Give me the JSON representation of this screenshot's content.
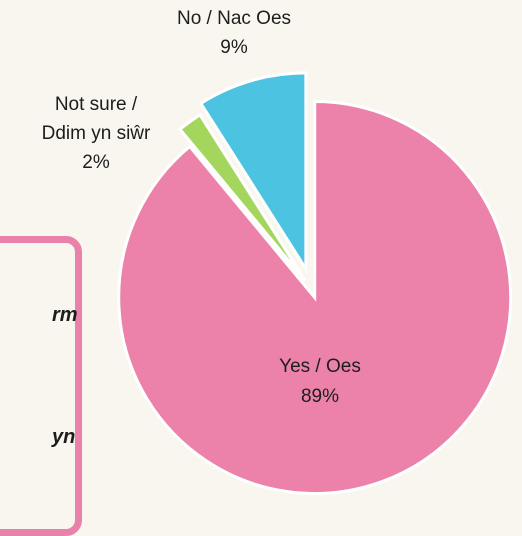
{
  "chart_data": {
    "type": "pie",
    "slices": [
      {
        "label_line1": "Yes / Oes",
        "label_line2": "",
        "value_label": "89%",
        "value": 89,
        "color": "#ec82aa"
      },
      {
        "label_line1": "Not sure /",
        "label_line2": "Ddim yn siŵr",
        "value_label": "2%",
        "value": 2,
        "color": "#a4d65e"
      },
      {
        "label_line1": "No / Nac Oes",
        "label_line2": "",
        "value_label": "9%",
        "value": 9,
        "color": "#4cc3e0"
      }
    ]
  },
  "legend_fragments": [
    "rm",
    "yn"
  ]
}
